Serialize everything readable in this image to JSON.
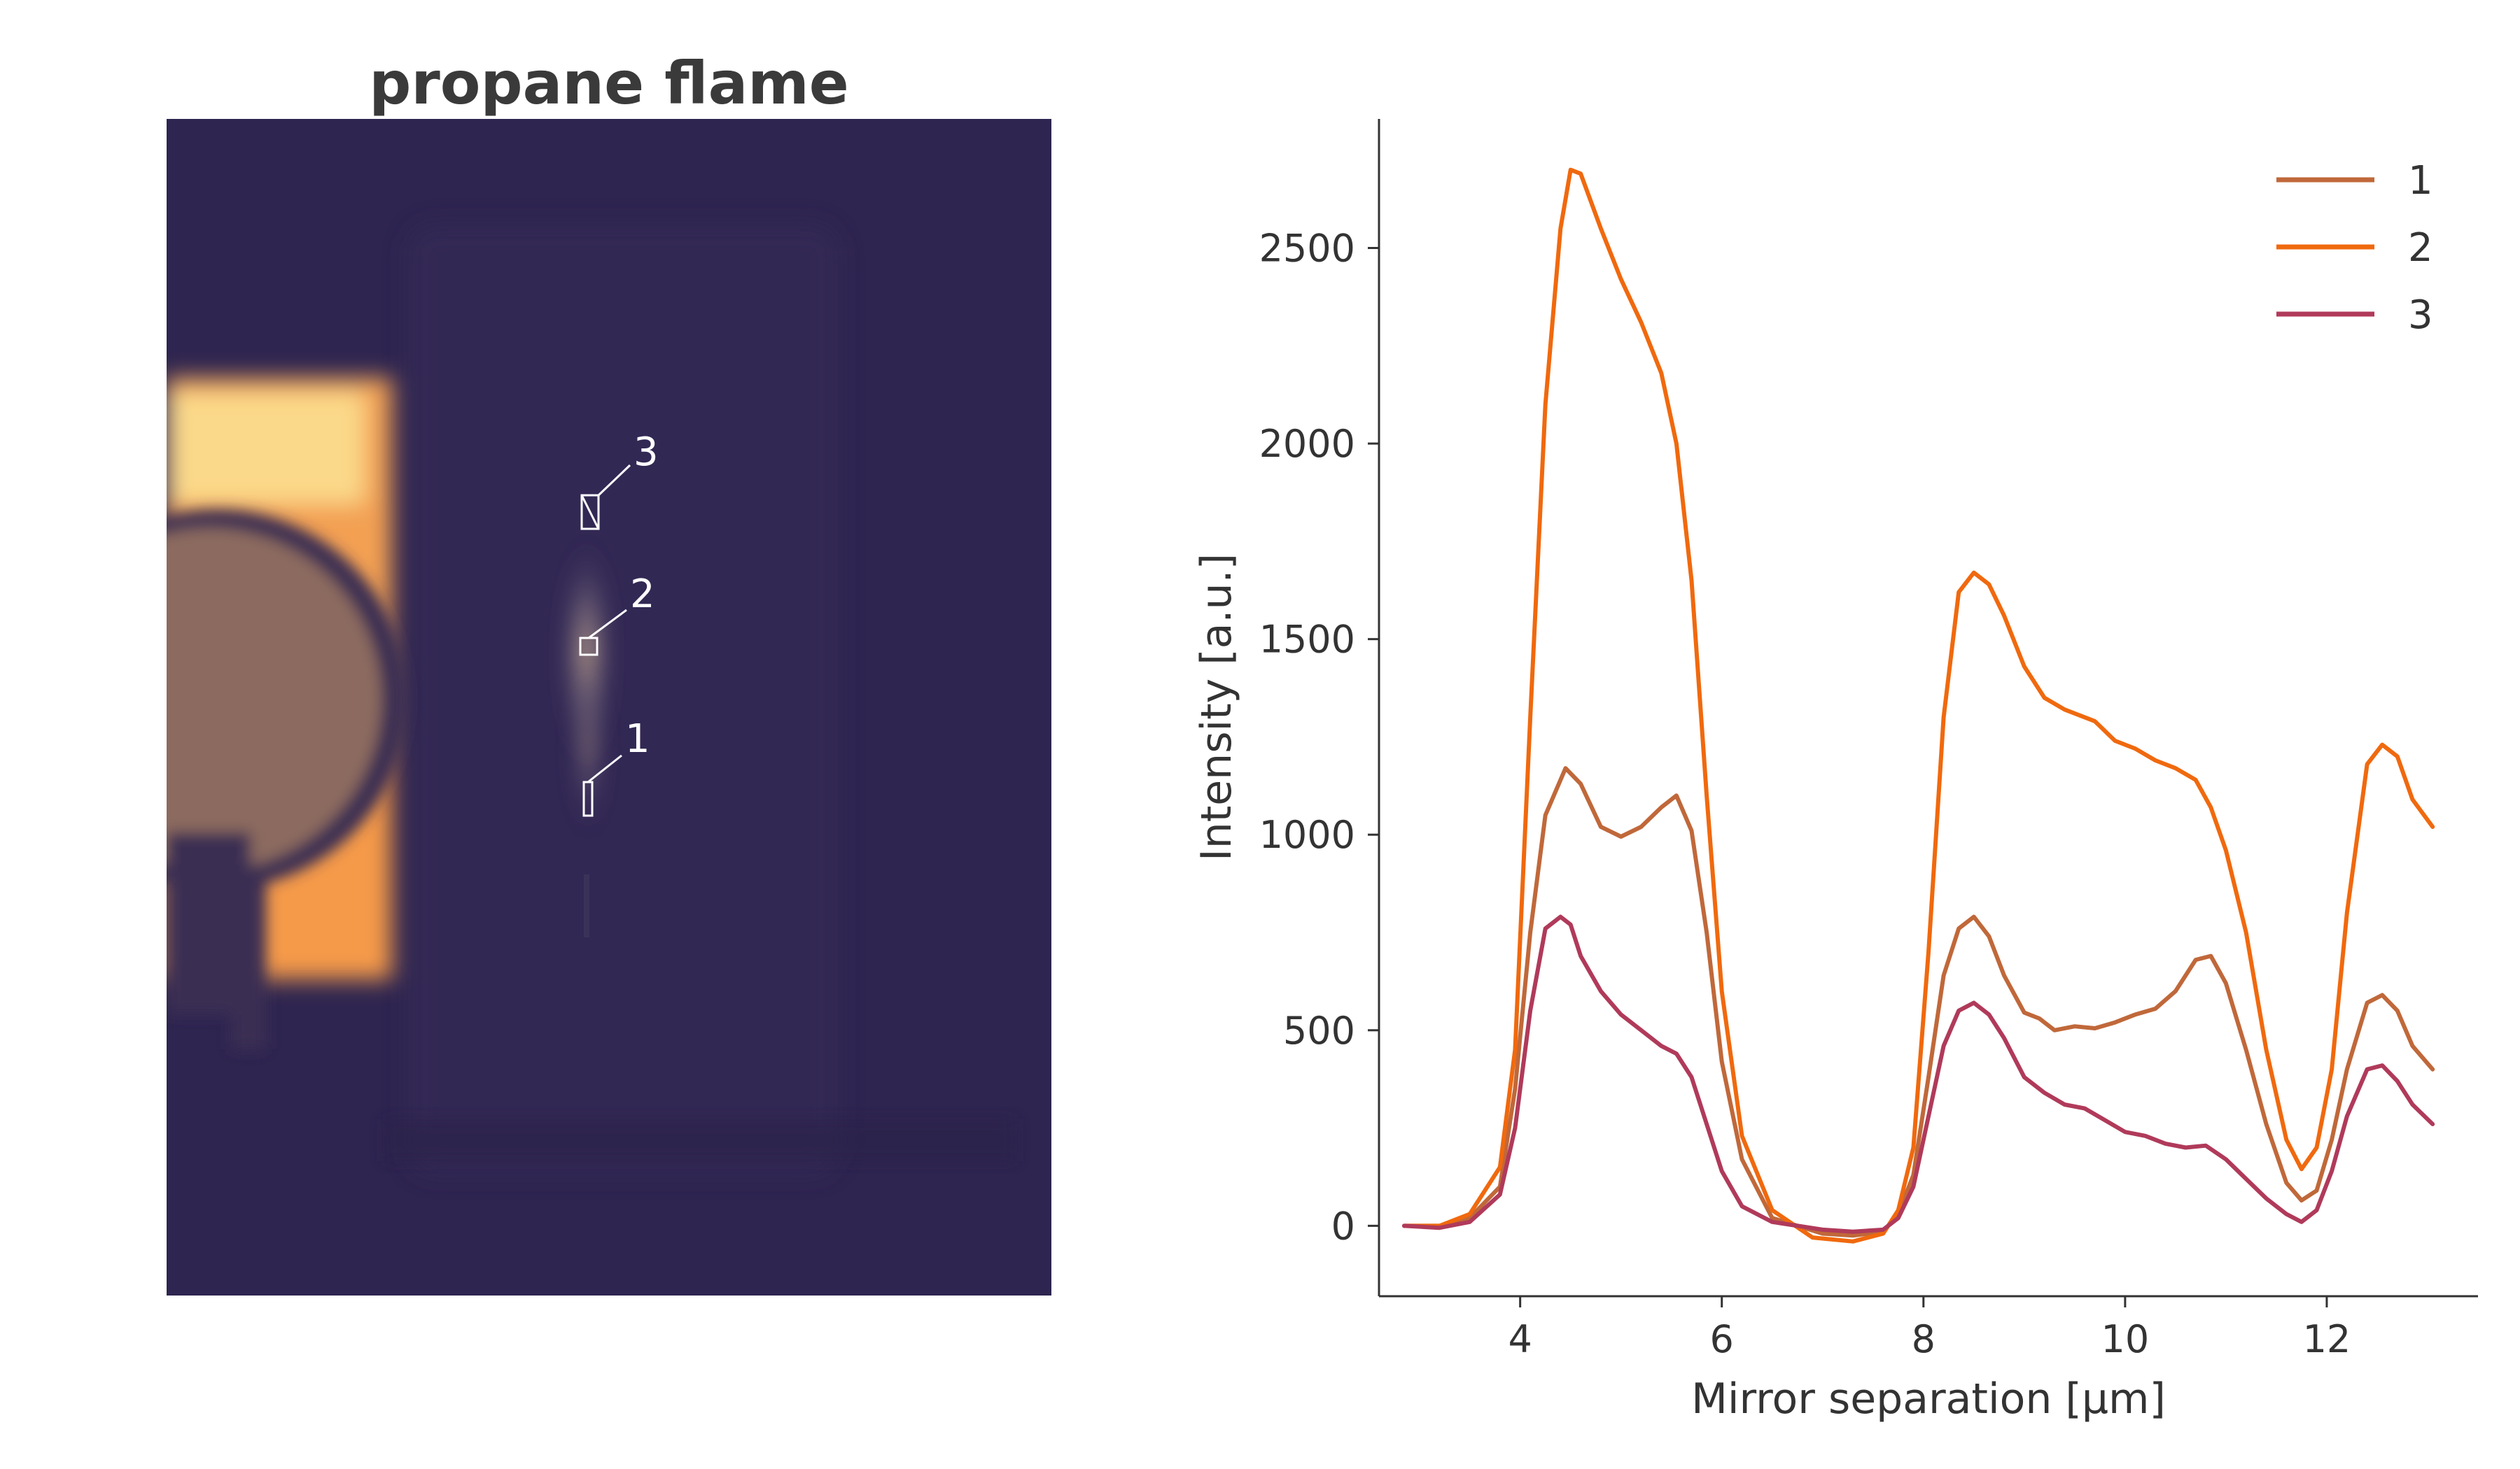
{
  "image_panel": {
    "title": "propane flame",
    "markers": [
      {
        "label": "1"
      },
      {
        "label": "2"
      },
      {
        "label": "3"
      }
    ]
  },
  "chart_data": {
    "type": "line",
    "title": "",
    "xlabel": "Mirror separation [µm]",
    "ylabel": "Intensity [a.u.]",
    "xlim": [
      2.6,
      13.5
    ],
    "ylim": [
      -180,
      2830
    ],
    "xticks": [
      4,
      6,
      8,
      10,
      12
    ],
    "yticks": [
      0,
      500,
      1000,
      1500,
      2000,
      2500
    ],
    "legend_position": "top-right",
    "grid": false,
    "series": [
      {
        "name": "1",
        "color": "#c0683a",
        "x": [
          2.85,
          3.2,
          3.5,
          3.8,
          3.95,
          4.1,
          4.25,
          4.45,
          4.6,
          4.8,
          5.0,
          5.2,
          5.4,
          5.55,
          5.7,
          5.85,
          6.0,
          6.2,
          6.5,
          7.0,
          7.3,
          7.6,
          7.75,
          7.9,
          8.05,
          8.2,
          8.35,
          8.5,
          8.65,
          8.8,
          9.0,
          9.15,
          9.3,
          9.5,
          9.7,
          9.9,
          10.1,
          10.3,
          10.5,
          10.7,
          10.85,
          11.0,
          11.2,
          11.4,
          11.6,
          11.75,
          11.9,
          12.05,
          12.2,
          12.4,
          12.55,
          12.7,
          12.85,
          13.05
        ],
        "y": [
          0,
          0,
          20,
          100,
          350,
          750,
          1050,
          1170,
          1130,
          1020,
          995,
          1020,
          1070,
          1100,
          1010,
          750,
          420,
          170,
          20,
          -20,
          -25,
          -15,
          30,
          130,
          380,
          640,
          760,
          790,
          740,
          640,
          545,
          530,
          500,
          510,
          505,
          520,
          540,
          555,
          600,
          680,
          690,
          620,
          450,
          260,
          110,
          65,
          90,
          220,
          400,
          570,
          590,
          550,
          460,
          400
        ]
      },
      {
        "name": "2",
        "color": "#f0690e",
        "x": [
          2.85,
          3.2,
          3.5,
          3.8,
          3.95,
          4.1,
          4.25,
          4.4,
          4.5,
          4.6,
          4.8,
          5.0,
          5.2,
          5.4,
          5.55,
          5.7,
          5.85,
          6.0,
          6.2,
          6.5,
          6.9,
          7.3,
          7.6,
          7.75,
          7.9,
          8.05,
          8.2,
          8.35,
          8.5,
          8.65,
          8.8,
          9.0,
          9.2,
          9.4,
          9.7,
          9.9,
          10.1,
          10.3,
          10.5,
          10.7,
          10.85,
          11.0,
          11.2,
          11.4,
          11.6,
          11.75,
          11.9,
          12.05,
          12.2,
          12.4,
          12.55,
          12.7,
          12.85,
          13.05
        ],
        "y": [
          0,
          0,
          30,
          150,
          450,
          1300,
          2100,
          2550,
          2700,
          2690,
          2550,
          2420,
          2310,
          2180,
          2000,
          1650,
          1100,
          600,
          230,
          40,
          -30,
          -40,
          -20,
          40,
          200,
          700,
          1300,
          1620,
          1670,
          1640,
          1560,
          1430,
          1350,
          1320,
          1290,
          1240,
          1220,
          1190,
          1170,
          1140,
          1070,
          960,
          750,
          450,
          220,
          145,
          200,
          400,
          800,
          1180,
          1230,
          1200,
          1090,
          1020
        ]
      },
      {
        "name": "3",
        "color": "#b03a5a",
        "x": [
          2.85,
          3.2,
          3.5,
          3.8,
          3.95,
          4.1,
          4.25,
          4.4,
          4.5,
          4.6,
          4.8,
          5.0,
          5.2,
          5.4,
          5.55,
          5.7,
          5.85,
          6.0,
          6.2,
          6.5,
          7.0,
          7.3,
          7.6,
          7.75,
          7.9,
          8.05,
          8.2,
          8.35,
          8.5,
          8.65,
          8.8,
          9.0,
          9.2,
          9.4,
          9.6,
          9.8,
          10.0,
          10.2,
          10.4,
          10.6,
          10.8,
          11.0,
          11.2,
          11.4,
          11.6,
          11.75,
          11.9,
          12.05,
          12.2,
          12.4,
          12.55,
          12.7,
          12.85,
          13.05
        ],
        "y": [
          0,
          -5,
          10,
          80,
          250,
          550,
          760,
          790,
          770,
          690,
          600,
          540,
          500,
          460,
          440,
          380,
          260,
          140,
          50,
          10,
          -10,
          -15,
          -10,
          20,
          100,
          280,
          460,
          550,
          570,
          540,
          480,
          380,
          340,
          310,
          300,
          270,
          240,
          230,
          210,
          200,
          205,
          170,
          120,
          70,
          30,
          10,
          40,
          140,
          280,
          400,
          410,
          370,
          310,
          260
        ]
      }
    ]
  },
  "colors": {
    "image_background": "#2e2550",
    "axis": "#333333",
    "marker": "#ffffff"
  }
}
